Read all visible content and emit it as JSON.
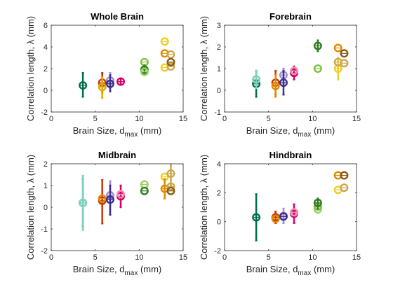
{
  "x_tick_labels": [
    "0",
    "5",
    "10",
    "15"
  ],
  "chart_data": [
    {
      "type": "scatter",
      "title": "Whole Brain",
      "xlabel": "Brain Size, d",
      "xlabel_sub": "max",
      "xlabel_unit": " (mm)",
      "ylabel": "Correlation length, λ (mm)",
      "xlim": [
        0,
        15
      ],
      "ylim": [
        -2,
        6
      ],
      "yticks": [
        "-2",
        "0",
        "2",
        "4",
        "6"
      ],
      "y_step": 2,
      "groups": [
        {
          "color": "#00704a",
          "points": [
            {
              "x": 3.6,
              "y": 0.45,
              "lo": -0.6,
              "hi": 1.6
            }
          ]
        },
        {
          "color": "#cc3300",
          "points": [
            {
              "x": 5.8,
              "y": 0.7,
              "lo": -0.2,
              "hi": 1.6
            }
          ]
        },
        {
          "color": "#e0a800",
          "points": [
            {
              "x": 5.8,
              "y": 0.3,
              "lo": -0.7,
              "hi": 1.2
            }
          ]
        },
        {
          "color": "#a78bd4",
          "points": [
            {
              "x": 6.7,
              "y": 0.9,
              "lo": 0.2,
              "hi": 1.6
            }
          ]
        },
        {
          "color": "#3b2f8f",
          "points": [
            {
              "x": 6.7,
              "y": 0.6,
              "lo": -0.1,
              "hi": 1.4
            }
          ]
        },
        {
          "color": "#d4006a",
          "points": [
            {
              "x": 7.9,
              "y": 0.8,
              "lo": 0.5,
              "hi": 1.1
            }
          ]
        },
        {
          "color": "#80c040",
          "points": [
            {
              "x": 10.6,
              "y": 2.6
            }
          ]
        },
        {
          "color": "#2f7d1f",
          "points": [
            {
              "x": 10.6,
              "y": 1.9,
              "lo": 1.5,
              "hi": 2.3
            }
          ]
        },
        {
          "color": "#9ccf60",
          "points": [
            {
              "x": 10.6,
              "y": 1.7
            }
          ]
        },
        {
          "color": "#f2cc20",
          "points": [
            {
              "x": 12.9,
              "y": 4.5
            },
            {
              "x": 12.9,
              "y": 2.1
            }
          ]
        },
        {
          "color": "#e08a00",
          "points": [
            {
              "x": 12.9,
              "y": 3.4
            }
          ]
        },
        {
          "color": "#c8a850",
          "points": [
            {
              "x": 13.6,
              "y": 3.3
            },
            {
              "x": 13.6,
              "y": 2.2
            }
          ]
        },
        {
          "color": "#8a5a10",
          "points": [
            {
              "x": 13.6,
              "y": 2.6
            }
          ]
        }
      ]
    },
    {
      "type": "scatter",
      "title": "Forebrain",
      "xlabel": "Brain Size, d",
      "xlabel_sub": "max",
      "xlabel_unit": " (mm)",
      "ylabel": "Correlation length, λ (mm)",
      "xlim": [
        0,
        15
      ],
      "ylim": [
        -1,
        3
      ],
      "yticks": [
        "-1",
        "0",
        "1",
        "2",
        "3"
      ],
      "y_step": 1,
      "groups": [
        {
          "color": "#00704a",
          "points": [
            {
              "x": 3.6,
              "y": 0.3,
              "lo": -0.3,
              "hi": 0.9
            }
          ]
        },
        {
          "color": "#80d0c0",
          "points": [
            {
              "x": 3.6,
              "y": 0.5,
              "lo": 0.1,
              "hi": 0.9
            }
          ]
        },
        {
          "color": "#cc3300",
          "points": [
            {
              "x": 5.8,
              "y": 0.35,
              "lo": -0.2,
              "hi": 0.9
            }
          ]
        },
        {
          "color": "#e08a00",
          "points": [
            {
              "x": 5.8,
              "y": 0.2,
              "lo": -0.3,
              "hi": 0.7
            }
          ]
        },
        {
          "color": "#a78bd4",
          "points": [
            {
              "x": 6.7,
              "y": 0.7,
              "lo": 0.3,
              "hi": 1.0
            }
          ]
        },
        {
          "color": "#3b2f8f",
          "points": [
            {
              "x": 6.7,
              "y": 0.35,
              "lo": -0.2,
              "hi": 0.9
            }
          ]
        },
        {
          "color": "#d4006a",
          "points": [
            {
              "x": 7.9,
              "y": 0.8,
              "lo": 0.5,
              "hi": 1.1
            }
          ]
        },
        {
          "color": "#f090b0",
          "points": [
            {
              "x": 7.9,
              "y": 0.9
            }
          ]
        },
        {
          "color": "#2f7d1f",
          "points": [
            {
              "x": 10.6,
              "y": 2.05,
              "lo": 1.8,
              "hi": 2.3
            }
          ]
        },
        {
          "color": "#80c040",
          "points": [
            {
              "x": 10.6,
              "y": 1.0
            }
          ]
        },
        {
          "color": "#e08a00",
          "points": [
            {
              "x": 12.9,
              "y": 1.95
            }
          ]
        },
        {
          "color": "#f2cc20",
          "points": [
            {
              "x": 12.9,
              "y": 1.0,
              "lo": 0.5,
              "hi": 1.5
            }
          ]
        },
        {
          "color": "#c8a850",
          "points": [
            {
              "x": 12.9,
              "y": 1.3
            },
            {
              "x": 13.6,
              "y": 1.25
            }
          ]
        },
        {
          "color": "#8a5a10",
          "points": [
            {
              "x": 13.6,
              "y": 1.7
            }
          ]
        }
      ]
    },
    {
      "type": "scatter",
      "title": "Midbrain",
      "xlabel": "Brain Size, d",
      "xlabel_sub": "max",
      "xlabel_unit": " (mm)",
      "ylabel": "Correlation length, λ (mm)",
      "xlim": [
        0,
        15
      ],
      "ylim": [
        -2,
        2
      ],
      "yticks": [
        "-2",
        "-1",
        "0",
        "1",
        "2"
      ],
      "y_step": 1,
      "groups": [
        {
          "color": "#00704a",
          "points": [
            {
              "x": 3.6,
              "y": 0.2,
              "lo": -0.9,
              "hi": 1.3
            }
          ]
        },
        {
          "color": "#80d0c0",
          "points": [
            {
              "x": 3.6,
              "y": 0.2,
              "lo": -1.05,
              "hi": 1.45
            }
          ]
        },
        {
          "color": "#cc3300",
          "points": [
            {
              "x": 5.8,
              "y": 0.3,
              "lo": -0.75,
              "hi": 1.25
            }
          ]
        },
        {
          "color": "#e08a00",
          "points": [
            {
              "x": 5.8,
              "y": 0.4
            }
          ]
        },
        {
          "color": "#a78bd4",
          "points": [
            {
              "x": 6.7,
              "y": 0.55,
              "lo": -0.2,
              "hi": 1.2
            }
          ]
        },
        {
          "color": "#3b2f8f",
          "points": [
            {
              "x": 6.7,
              "y": 0.35,
              "lo": -0.35,
              "hi": 1.0
            }
          ]
        },
        {
          "color": "#d4006a",
          "points": [
            {
              "x": 7.9,
              "y": 0.5,
              "lo": 0.0,
              "hi": 1.0
            }
          ]
        },
        {
          "color": "#f090b0",
          "points": [
            {
              "x": 7.9,
              "y": 0.6
            }
          ]
        },
        {
          "color": "#9ccf60",
          "points": [
            {
              "x": 10.6,
              "y": 1.05
            }
          ]
        },
        {
          "color": "#2f7d1f",
          "points": [
            {
              "x": 10.6,
              "y": 0.75
            }
          ]
        },
        {
          "color": "#f2cc20",
          "points": [
            {
              "x": 12.9,
              "y": 1.4
            }
          ]
        },
        {
          "color": "#e08a00",
          "points": [
            {
              "x": 12.9,
              "y": 0.85,
              "lo": 0.4,
              "hi": 1.3
            }
          ]
        },
        {
          "color": "#c8a850",
          "points": [
            {
              "x": 13.6,
              "y": 1.55,
              "lo": 1.0,
              "hi": 1.95
            },
            {
              "x": 13.6,
              "y": 0.95
            }
          ]
        },
        {
          "color": "#8a5a10",
          "points": [
            {
              "x": 13.6,
              "y": 0.75
            }
          ]
        }
      ]
    },
    {
      "type": "scatter",
      "title": "Hindbrain",
      "xlabel": "Brain Size, d",
      "xlabel_sub": "max",
      "xlabel_unit": " (mm)",
      "ylabel": "Correlation length, λ (mm)",
      "xlim": [
        0,
        15
      ],
      "ylim": [
        -2,
        4
      ],
      "yticks": [
        "-2",
        "0",
        "2",
        "4"
      ],
      "y_step": 2,
      "groups": [
        {
          "color": "#00704a",
          "points": [
            {
              "x": 3.6,
              "y": 0.3,
              "lo": -1.3,
              "hi": 1.9
            }
          ]
        },
        {
          "color": "#cc3300",
          "points": [
            {
              "x": 5.8,
              "y": 0.3,
              "lo": -0.1,
              "hi": 0.7
            }
          ]
        },
        {
          "color": "#e08a00",
          "points": [
            {
              "x": 5.8,
              "y": 0.2
            }
          ]
        },
        {
          "color": "#a78bd4",
          "points": [
            {
              "x": 6.7,
              "y": 0.4,
              "lo": -0.1,
              "hi": 0.9
            }
          ]
        },
        {
          "color": "#3b2f8f",
          "points": [
            {
              "x": 6.7,
              "y": 0.35
            }
          ]
        },
        {
          "color": "#d4006a",
          "points": [
            {
              "x": 7.9,
              "y": 0.55,
              "lo": -0.1,
              "hi": 1.2
            }
          ]
        },
        {
          "color": "#f090b0",
          "points": [
            {
              "x": 7.9,
              "y": 0.65
            }
          ]
        },
        {
          "color": "#9ccf60",
          "points": [
            {
              "x": 10.6,
              "y": 0.85
            }
          ]
        },
        {
          "color": "#80c040",
          "points": [
            {
              "x": 10.6,
              "y": 1.05
            }
          ]
        },
        {
          "color": "#2f7d1f",
          "points": [
            {
              "x": 10.6,
              "y": 1.3,
              "lo": 0.9,
              "hi": 1.6
            }
          ]
        },
        {
          "color": "#e08a00",
          "points": [
            {
              "x": 12.9,
              "y": 3.2
            }
          ]
        },
        {
          "color": "#f2cc20",
          "points": [
            {
              "x": 12.9,
              "y": 2.2
            }
          ]
        },
        {
          "color": "#8a5a10",
          "points": [
            {
              "x": 13.6,
              "y": 3.2
            }
          ]
        },
        {
          "color": "#c8a850",
          "points": [
            {
              "x": 13.6,
              "y": 2.35
            }
          ]
        }
      ]
    }
  ]
}
